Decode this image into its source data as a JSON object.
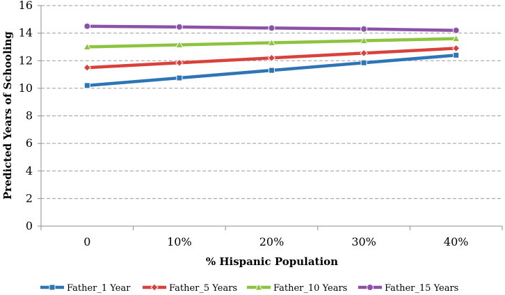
{
  "chart_data": {
    "type": "line",
    "title": "",
    "xlabel": "% Hispanic Population",
    "ylabel": "Predicted Years of Schooling",
    "categories": [
      "0",
      "10%",
      "20%",
      "30%",
      "40%"
    ],
    "ylim": [
      0,
      16
    ],
    "yticks": [
      0,
      2,
      4,
      6,
      8,
      10,
      12,
      14,
      16
    ],
    "grid": true,
    "legend_position": "bottom",
    "series": [
      {
        "name": "Father_1 Year",
        "values": [
          10.2,
          10.75,
          11.3,
          11.85,
          12.4
        ],
        "color": "#2e75b6",
        "marker": "square"
      },
      {
        "name": "Father_5 Years",
        "values": [
          11.5,
          11.85,
          12.2,
          12.55,
          12.9
        ],
        "color": "#d9413c",
        "marker": "diamond"
      },
      {
        "name": "Father_10 Years",
        "values": [
          13.0,
          13.15,
          13.3,
          13.45,
          13.6
        ],
        "color": "#8cc43f",
        "marker": "triangle"
      },
      {
        "name": "Father_15 Years",
        "values": [
          14.5,
          14.45,
          14.37,
          14.3,
          14.2
        ],
        "color": "#8b52a8",
        "marker": "circle"
      }
    ]
  }
}
